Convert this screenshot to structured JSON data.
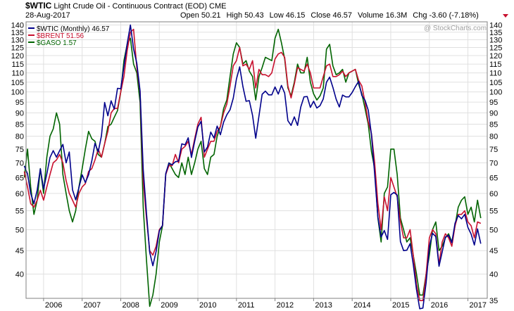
{
  "header": {
    "symbol": "$WTIC",
    "name": "Light Crude Oil - Continuous Contract (EOD)",
    "exchange": "CME",
    "date": "28-Aug-2017",
    "open_label": "Open",
    "open": "50.21",
    "high_label": "High",
    "high": "50.43",
    "low_label": "Low",
    "low": "46.15",
    "close_label": "Close",
    "close": "46.57",
    "volume_label": "Volume",
    "volume": "16.3M",
    "chg_label": "Chg",
    "chg": "-3.60 (-7.18%)",
    "watermark": "@ StockCharts.com"
  },
  "colors": {
    "wtic": "#00008b",
    "brent": "#c8102e",
    "gaso": "#006400",
    "grid": "#e0e0e0",
    "frame": "#808080"
  },
  "chart_data": {
    "type": "line",
    "title": "$WTIC Light Crude Oil - Continuous Contract (EOD) CME",
    "x_start": "2005-07",
    "x_end": "2017-08",
    "x_tick_labels": [
      "2006",
      "2007",
      "2008",
      "2009",
      "2010",
      "2011",
      "2012",
      "2013",
      "2014",
      "2015",
      "2016",
      "2017"
    ],
    "y_scale": "log",
    "ylim": [
      33,
      141
    ],
    "left_y_ticks": [
      40,
      45,
      50,
      55,
      60,
      65,
      70,
      75,
      80,
      85,
      90,
      95,
      100,
      105,
      110,
      115,
      120,
      125,
      130,
      135,
      140
    ],
    "right_y_ticks": [
      35,
      40,
      45,
      50,
      55,
      60,
      65,
      70,
      75,
      80,
      85,
      90,
      95,
      100,
      105,
      110,
      115,
      120,
      125,
      130,
      135,
      140
    ],
    "grid": true,
    "legend_position": "top-left",
    "series": [
      {
        "name": "$WTIC (Monthly) 46.57",
        "axis": "left",
        "color": "#00008b",
        "values": [
          68.9,
          66.2,
          60.0,
          57.0,
          61.0,
          67.9,
          61.4,
          66.2,
          71.9,
          74.4,
          72.0,
          74.4,
          76.8,
          70.0,
          73.9,
          61.1,
          58.1,
          61.8,
          65.9,
          63.4,
          65.9,
          70.7,
          77.2,
          74.0,
          80.2,
          94.8,
          88.7,
          95.6,
          91.7,
          101.8,
          101.6,
          113.5,
          127.3,
          140.0,
          124.1,
          115.5,
          100.6,
          67.8,
          54.4,
          44.6,
          41.7,
          44.8,
          49.7,
          51.1,
          66.3,
          69.9,
          69.3,
          70.4,
          70.6,
          77.0,
          76.6,
          79.4,
          71.9,
          78.0,
          83.8,
          86.2,
          73.9,
          75.8,
          81.7,
          79.3,
          84.2,
          80.6,
          85.9,
          89.1,
          91.4,
          96.9,
          106.7,
          113.4,
          102.7,
          95.4,
          95.7,
          88.8,
          79.2,
          88.6,
          98.8,
          100.4,
          98.5,
          98.5,
          102.5,
          98.9,
          103.3,
          99.4,
          86.5,
          84.5,
          88.2,
          84.5,
          92.6,
          97.5,
          97.7,
          92.5,
          95.4,
          92.2,
          93.3,
          96.5,
          105.0,
          107.7,
          102.3,
          96.4,
          92.7,
          98.4,
          97.5,
          97.5,
          99.7,
          102.7,
          105.4,
          98.2,
          95.9,
          91.2,
          80.5,
          66.2,
          53.3,
          48.2,
          49.8,
          47.6,
          59.6,
          60.3,
          59.5,
          47.1,
          45.0,
          45.1,
          46.6,
          42.0,
          37.0,
          33.6,
          33.7,
          38.3,
          45.9,
          49.1,
          48.3,
          41.6,
          44.7,
          48.2,
          48.6,
          46.8,
          51.7,
          53.7,
          52.8,
          54.0,
          50.6,
          48.9,
          46.3,
          50.2,
          46.6
        ]
      },
      {
        "name": "$BRENT 51.56",
        "axis": "left",
        "color": "#c8102e",
        "values": [
          67.0,
          62.0,
          57.0,
          56.0,
          58.0,
          61.0,
          58.0,
          62.0,
          66.0,
          70.0,
          71.0,
          73.0,
          70.0,
          64.0,
          60.0,
          58.0,
          56.0,
          60.0,
          62.0,
          63.0,
          67.0,
          68.0,
          71.0,
          75.0,
          72.0,
          77.0,
          82.0,
          90.0,
          92.0,
          92.0,
          100.0,
          108.0,
          123.0,
          135.0,
          137.0,
          113.0,
          100.0,
          64.0,
          53.0,
          45.0,
          44.0,
          46.0,
          50.0,
          51.0,
          66.0,
          69.0,
          69.0,
          73.0,
          70.0,
          75.0,
          76.0,
          78.0,
          73.0,
          79.0,
          85.0,
          88.0,
          72.0,
          75.0,
          78.0,
          78.0,
          82.0,
          84.0,
          90.0,
          94.0,
          103.0,
          114.0,
          117.0,
          125.0,
          114.0,
          115.0,
          112.0,
          117.0,
          102.0,
          112.0,
          109.0,
          109.0,
          108.0,
          110.0,
          118.0,
          121.0,
          122.0,
          119.0,
          103.0,
          97.0,
          104.0,
          113.0,
          112.0,
          111.0,
          115.0,
          110.0,
          102.0,
          102.0,
          102.0,
          108.0,
          114.0,
          115.0,
          108.0,
          108.0,
          109.0,
          111.0,
          108.0,
          110.0,
          111.0,
          112.0,
          106.0,
          103.0,
          95.0,
          86.0,
          81.0,
          70.0,
          57.0,
          50.0,
          59.0,
          55.0,
          65.0,
          62.0,
          59.0,
          52.0,
          48.0,
          48.0,
          50.0,
          44.0,
          38.0,
          35.0,
          35.0,
          40.0,
          48.0,
          50.0,
          49.0,
          42.0,
          47.0,
          49.0,
          48.0,
          46.0,
          51.0,
          54.0,
          54.0,
          55.0,
          52.0,
          51.0,
          48.0,
          52.0,
          51.6
        ]
      },
      {
        "name": "$GASO 1.57",
        "axis": "right",
        "color": "#006400",
        "values": [
          65.0,
          75.0,
          62.0,
          54.0,
          58.0,
          68.0,
          60.0,
          72.0,
          80.0,
          83.0,
          90.0,
          85.0,
          66.0,
          60.0,
          55.0,
          52.0,
          55.0,
          62.0,
          68.0,
          75.0,
          82.0,
          79.0,
          78.0,
          73.0,
          72.0,
          77.0,
          84.0,
          85.0,
          88.0,
          91.0,
          100.0,
          117.0,
          127.0,
          131.0,
          115.0,
          110.0,
          95.0,
          56.0,
          43.0,
          34.0,
          36.0,
          40.0,
          47.0,
          51.0,
          66.0,
          70.0,
          68.0,
          66.0,
          65.0,
          70.0,
          66.0,
          72.0,
          66.0,
          70.0,
          75.0,
          78.0,
          68.0,
          66.0,
          72.0,
          73.0,
          80.0,
          84.0,
          92.0,
          96.0,
          108.0,
          121.0,
          128.0,
          125.0,
          115.0,
          117.0,
          111.0,
          108.0,
          96.0,
          108.0,
          113.0,
          119.0,
          118.0,
          117.0,
          131.0,
          137.0,
          128.0,
          118.0,
          102.0,
          98.0,
          105.0,
          115.0,
          110.0,
          110.0,
          119.0,
          105.0,
          99.0,
          96.0,
          98.0,
          102.0,
          124.0,
          127.0,
          114.0,
          109.0,
          110.0,
          112.0,
          105.0,
          110.0,
          111.0,
          112.0,
          104.0,
          99.0,
          92.0,
          85.0,
          74.0,
          68.0,
          53.0,
          47.0,
          60.0,
          62.0,
          75.0,
          75.0,
          66.0,
          53.0,
          50.0,
          47.0,
          48.0,
          44.0,
          40.0,
          36.0,
          36.0,
          40.0,
          44.0,
          50.0,
          52.0,
          45.0,
          46.0,
          48.0,
          49.0,
          47.0,
          51.0,
          56.0,
          58.0,
          59.0,
          54.0,
          56.0,
          52.0,
          58.0,
          53.0
        ]
      }
    ]
  }
}
